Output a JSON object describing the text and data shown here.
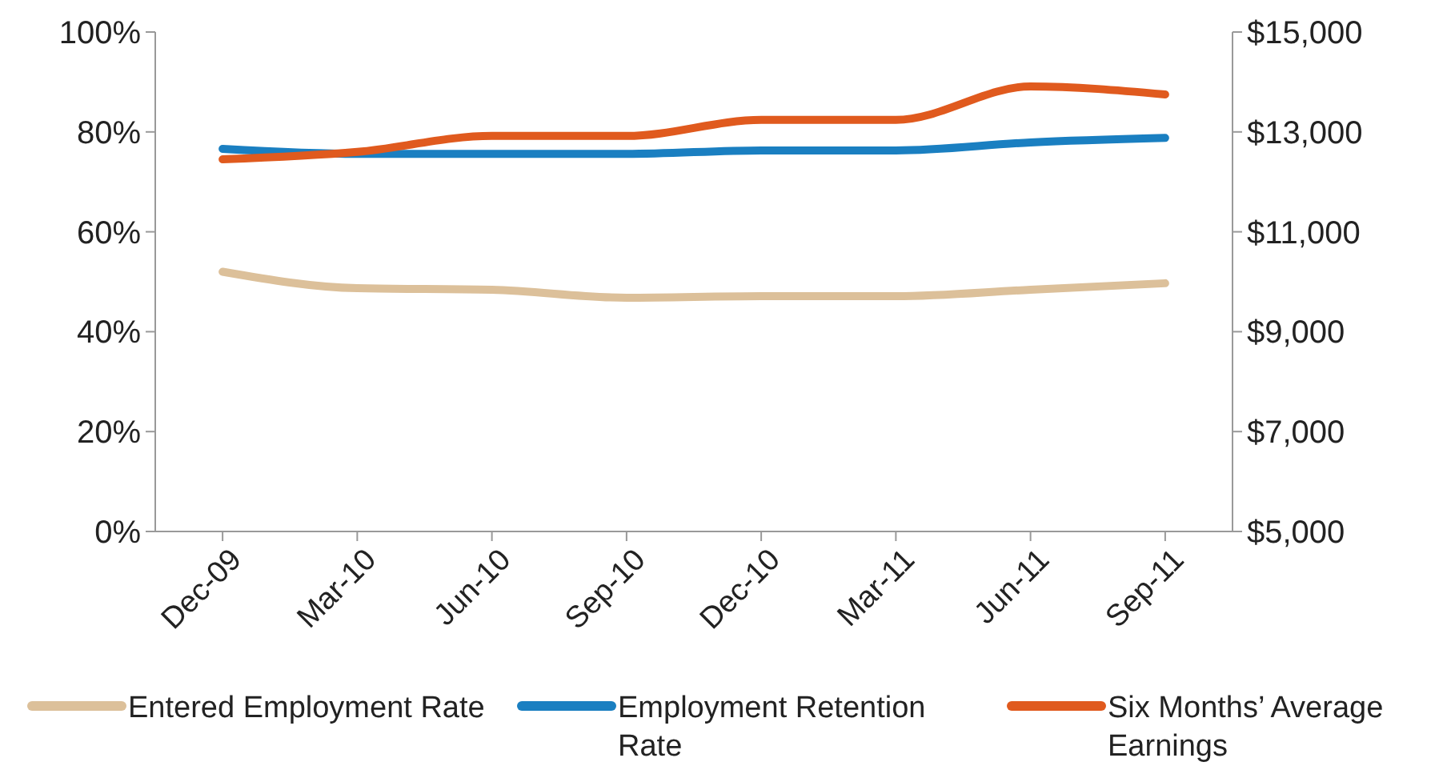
{
  "chart_data": {
    "type": "line",
    "categories": [
      "Dec-09",
      "Mar-10",
      "Jun-10",
      "Sep-10",
      "Dec-10",
      "Mar-11",
      "Jun-11",
      "Sep-11"
    ],
    "series": [
      {
        "name": "Entered Employment Rate",
        "color": "#dcc09a",
        "values": [
          52,
          48.7,
          48.4,
          46.8,
          47.1,
          47.1,
          48.4,
          49.7
        ]
      },
      {
        "name": "Employment Retention Rate",
        "color": "#1a7fc1",
        "values": [
          76.6,
          75.6,
          75.6,
          75.6,
          76.3,
          76.3,
          77.9,
          78.8
        ]
      },
      {
        "name": "Six Months’ Average Earnings",
        "color": "#e05a1e",
        "axis": "y2",
        "values": [
          12450,
          12600,
          12920,
          12920,
          13240,
          13240,
          13910,
          13750
        ]
      }
    ],
    "ylim": [
      0,
      100
    ],
    "yticks": [
      {
        "value": 0,
        "label": "0%"
      },
      {
        "value": 20,
        "label": "20%"
      },
      {
        "value": 40,
        "label": "40%"
      },
      {
        "value": 60,
        "label": "60%"
      },
      {
        "value": 80,
        "label": "80%"
      },
      {
        "value": 100,
        "label": "100%"
      }
    ],
    "y2lim": [
      5000,
      15000
    ],
    "y2ticks": [
      {
        "value": 5000,
        "label": "$5,000"
      },
      {
        "value": 7000,
        "label": "$7,000"
      },
      {
        "value": 9000,
        "label": "$9,000"
      },
      {
        "value": 11000,
        "label": "$11,000"
      },
      {
        "value": 13000,
        "label": "$13,000"
      },
      {
        "value": 15000,
        "label": "$15,000"
      }
    ],
    "grid": false,
    "legend": "bottom",
    "marker": "none",
    "line_style": "solid"
  }
}
